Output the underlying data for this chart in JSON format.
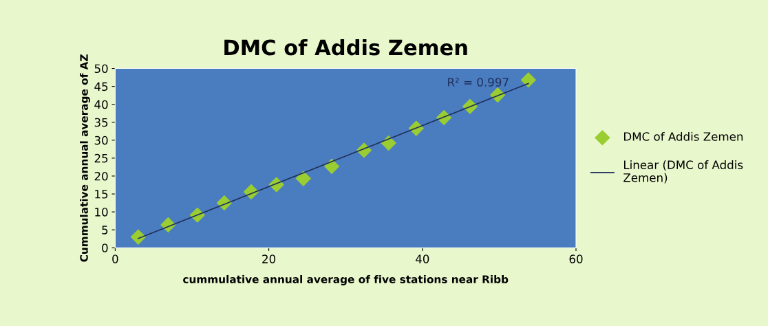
{
  "chart_data": {
    "type": "scatter",
    "title": "DMC of Addis Zemen",
    "xlabel": "cummulative annual average of five stations near Ribb",
    "ylabel": "Cummulative annual average of AZ",
    "x": [
      3.0,
      6.9,
      10.7,
      14.2,
      17.7,
      21.0,
      24.5,
      28.2,
      32.4,
      35.6,
      39.2,
      42.8,
      46.2,
      49.8,
      53.8
    ],
    "series": [
      {
        "name": "DMC of Addis Zemen",
        "color": "#9acd32",
        "values": [
          3.0,
          6.4,
          9.1,
          12.5,
          15.6,
          17.6,
          19.3,
          22.7,
          27.2,
          29.2,
          33.3,
          36.3,
          39.4,
          42.6,
          46.8
        ],
        "marker": "diamond"
      },
      {
        "name": "Linear (DMC of Addis Zemen)",
        "type": "line",
        "color": "#1f2f5a",
        "x": [
          3.0,
          53.8
        ],
        "values": [
          2.6,
          45.8
        ],
        "marker": "none",
        "line_style": "solid"
      }
    ],
    "annotations": [
      "R² = 0.997"
    ],
    "xlim": [
      0,
      60
    ],
    "xticks": [
      0,
      20,
      40,
      60
    ],
    "ylim": [
      0,
      50
    ],
    "yticks": [
      0,
      5,
      10,
      15,
      20,
      25,
      30,
      35,
      40,
      45,
      50
    ],
    "grid": false,
    "legend": "right"
  }
}
